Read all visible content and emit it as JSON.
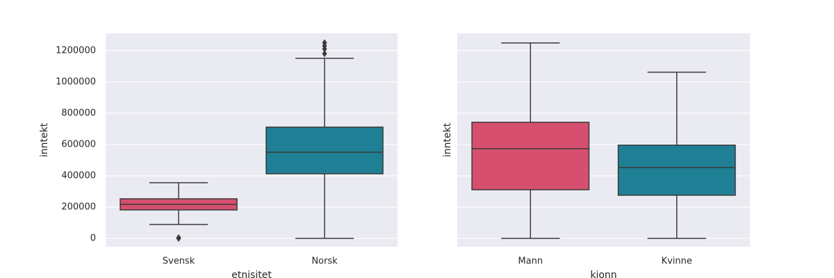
{
  "chart_data": [
    {
      "type": "box",
      "x_label": "etnisitet",
      "y_label": "inntekt",
      "categories": [
        "Svensk",
        "Norsk"
      ],
      "boxes": [
        {
          "color": "#d64f6e",
          "whislo": 89000,
          "q1": 182000,
          "median": 218000,
          "q3": 253000,
          "whishi": 356000,
          "fliers": [
            0,
            5000
          ]
        },
        {
          "color": "#1f7f95",
          "whislo": 0,
          "q1": 413000,
          "median": 551000,
          "q3": 711000,
          "whishi": 1151000,
          "fliers": [
            1180000,
            1210000,
            1230000,
            1250000
          ]
        }
      ],
      "ylim": [
        -53000,
        1310000
      ],
      "yticks": [
        0,
        200000,
        400000,
        600000,
        800000,
        1000000,
        1200000
      ],
      "ytick_labels": true,
      "grid": true
    },
    {
      "type": "box",
      "x_label": "kjonn",
      "y_label": "inntekt",
      "categories": [
        "Mann",
        "Kvinne"
      ],
      "boxes": [
        {
          "color": "#d64f6e",
          "whislo": 0,
          "q1": 311000,
          "median": 573000,
          "q3": 742000,
          "whishi": 1249000,
          "fliers": []
        },
        {
          "color": "#1f7f95",
          "whislo": 0,
          "q1": 276000,
          "median": 453000,
          "q3": 596000,
          "whishi": 1062000,
          "fliers": []
        }
      ],
      "ylim": [
        -53000,
        1310000
      ],
      "yticks": [
        0,
        200000,
        400000,
        600000,
        800000,
        1000000,
        1200000
      ],
      "ytick_labels": false,
      "grid": true
    }
  ]
}
